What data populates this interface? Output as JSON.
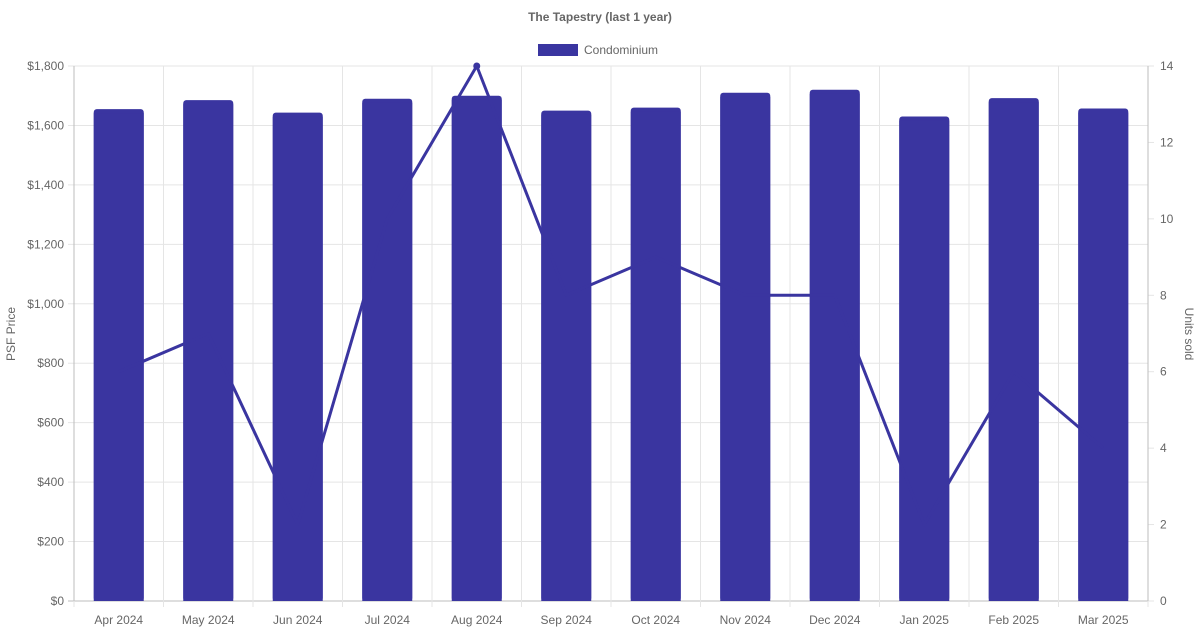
{
  "chart_data": {
    "type": "bar",
    "title": "The Tapestry (last 1 year)",
    "categories": [
      "Apr 2024",
      "May 2024",
      "Jun 2024",
      "Jul 2024",
      "Aug 2024",
      "Sep 2024",
      "Oct 2024",
      "Nov 2024",
      "Dec 2024",
      "Jan 2025",
      "Feb 2025",
      "Mar 2025"
    ],
    "series": [
      {
        "name": "Condominium",
        "type": "bar",
        "axis": "left",
        "color": "#3a35a0",
        "values": [
          1655,
          1685,
          1643,
          1690,
          1700,
          1650,
          1660,
          1710,
          1720,
          1630,
          1692,
          1657
        ]
      },
      {
        "type": "line",
        "axis": "right",
        "color": "#3a35a0",
        "values": [
          6,
          7,
          2,
          10,
          14,
          8,
          9,
          8,
          8,
          2,
          6,
          4
        ]
      }
    ],
    "ylabel": "PSF Price",
    "y2label": "Units sold",
    "ylim": [
      0,
      1800
    ],
    "y2lim": [
      0,
      14
    ],
    "yticks": [
      "$0",
      "$200",
      "$400",
      "$600",
      "$800",
      "$1,000",
      "$1,200",
      "$1,400",
      "$1,600",
      "$1,800"
    ],
    "y2ticks": [
      "0",
      "2",
      "4",
      "6",
      "8",
      "10",
      "12",
      "14"
    ],
    "legend": "top",
    "grid": true
  }
}
